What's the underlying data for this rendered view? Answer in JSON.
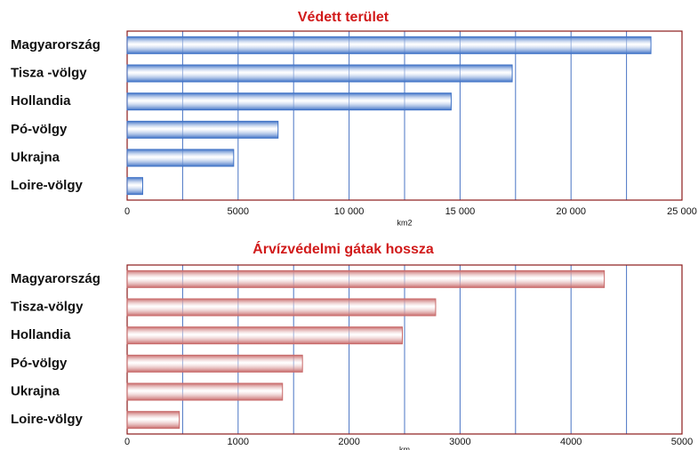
{
  "chart_data": [
    {
      "type": "bar",
      "orientation": "horizontal",
      "title": "Védett terület",
      "xlabel": "km2",
      "categories": [
        "Magyarország",
        "Tisza -völgy",
        "Hollandia",
        "Pó-völgy",
        "Ukrajna",
        "Loire-völgy"
      ],
      "values": [
        23600,
        17350,
        14600,
        6800,
        4800,
        700
      ],
      "color": "#3f72c6",
      "xlim": [
        0,
        25000
      ],
      "xticks": [
        0,
        5000,
        {
          "value": 10000,
          "label": "10 000"
        },
        {
          "value": 15000,
          "label": "15 000"
        },
        {
          "value": 20000,
          "label": "20 000"
        },
        {
          "value": 25000,
          "label": "25 000"
        }
      ],
      "xminorticks": [
        2500,
        7500,
        12500,
        17500,
        22500
      ],
      "grid": true
    },
    {
      "type": "bar",
      "orientation": "horizontal",
      "title": "Árvízvédelmi gátak hossza",
      "xlabel": "km",
      "categories": [
        "Magyarország",
        "Tisza-völgy",
        "Hollandia",
        "Pó-völgy",
        "Ukrajna",
        "Loire-völgy"
      ],
      "values": [
        4300,
        2780,
        2480,
        1580,
        1400,
        470
      ],
      "color": "#c86a6a",
      "xlim": [
        0,
        5000
      ],
      "xticks": [
        0,
        1000,
        2000,
        3000,
        4000,
        5000
      ],
      "xminorticks": [
        500,
        1500,
        2500,
        3500,
        4500
      ],
      "grid": true
    }
  ]
}
